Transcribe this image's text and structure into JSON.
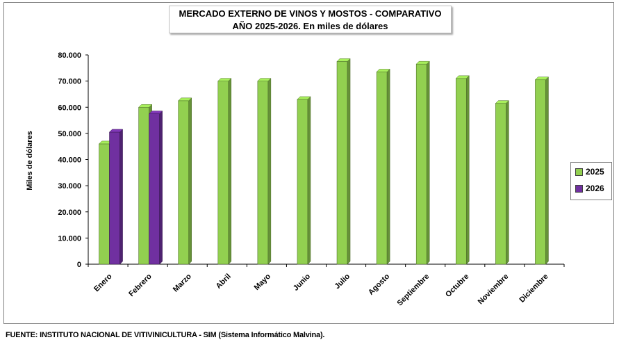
{
  "chart_data": {
    "type": "bar",
    "title_line1": "MERCADO EXTERNO DE VINOS Y MOSTOS - COMPARATIVO",
    "title_line2": "AÑO 2025-2026. En miles de dólares",
    "ylabel": "Miles de dólares",
    "xlabel": "",
    "ylim": [
      0,
      80000
    ],
    "yticks": [
      "0",
      "10.000",
      "20.000",
      "30.000",
      "40.000",
      "50.000",
      "60.000",
      "70.000",
      "80.000"
    ],
    "categories": [
      "Enero",
      "Febrero",
      "Marzo",
      "Abril",
      "Mayo",
      "Junio",
      "Julio",
      "Agosto",
      "Septiembre",
      "Octubre",
      "Noviembre",
      "Diciembre"
    ],
    "series": [
      {
        "name": "2025",
        "color": "#92d050",
        "values": [
          46000,
          60000,
          62500,
          70000,
          70000,
          63000,
          77500,
          73500,
          76500,
          71000,
          61500,
          70500
        ]
      },
      {
        "name": "2026",
        "color": "#7030a0",
        "values": [
          50500,
          57500,
          null,
          null,
          null,
          null,
          null,
          null,
          null,
          null,
          null,
          null
        ]
      }
    ],
    "legend_position": "right",
    "grid": false
  },
  "source": "FUENTE: INSTITUTO NACIONAL DE VITIVINICULTURA - SIM (Sistema Informático Malvina)."
}
